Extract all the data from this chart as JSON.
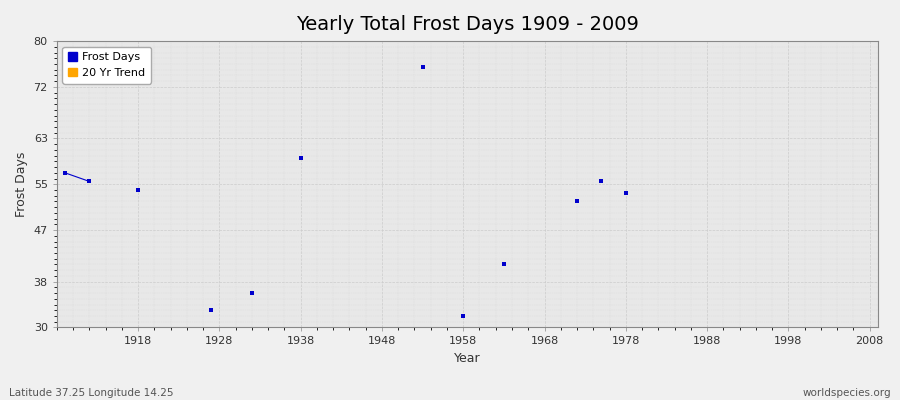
{
  "title": "Yearly Total Frost Days 1909 - 2009",
  "xlabel": "Year",
  "ylabel": "Frost Days",
  "subtitle_left": "Latitude 37.25 Longitude 14.25",
  "subtitle_right": "worldspecies.org",
  "scatter_years": [
    1909,
    1912,
    1918,
    1927,
    1932,
    1938,
    1953,
    1958,
    1963,
    1972,
    1975,
    1978
  ],
  "scatter_values": [
    57.0,
    55.5,
    54.0,
    33.0,
    36.0,
    59.5,
    75.5,
    32.0,
    41.0,
    52.0,
    55.5,
    53.5
  ],
  "line_years": [
    1909,
    1912
  ],
  "line_values": [
    57.0,
    55.5
  ],
  "scatter_color": "#0000cc",
  "line_color": "#0000cc",
  "trend_color": "#ffa500",
  "fig_bg_color": "#f0f0f0",
  "plot_bg_color": "#e8e8e8",
  "ylim": [
    30,
    80
  ],
  "yticks": [
    30,
    38,
    47,
    55,
    63,
    72,
    80
  ],
  "xlim": [
    1908,
    2009
  ],
  "xticks": [
    1918,
    1928,
    1938,
    1948,
    1958,
    1968,
    1978,
    1988,
    1998,
    2008
  ],
  "legend_labels": [
    "Frost Days",
    "20 Yr Trend"
  ],
  "legend_colors": [
    "#0000cc",
    "#ffa500"
  ],
  "marker_size": 8,
  "title_fontsize": 14
}
